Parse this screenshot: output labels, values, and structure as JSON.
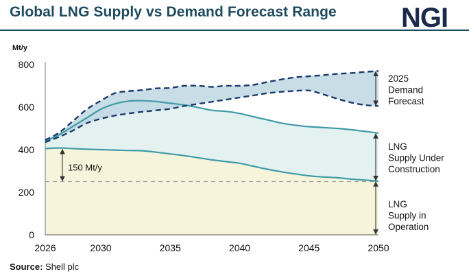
{
  "title": "Global LNG Supply vs Demand Forecast Range",
  "logo": "NGI",
  "source_label": "Source:",
  "source_text": "Shell plc",
  "colors": {
    "title": "#1f4a5c",
    "operation_fill": "#f6f5dc",
    "construction_fill": "#e3f2f1",
    "demand_fill": "#bfd7e3",
    "supply_line": "#3f9aa6",
    "demand_line": "#1b3a6b",
    "dashed_ref": "#9a9a9a"
  },
  "chart_data": {
    "type": "area",
    "title": "Global LNG Supply vs Demand Forecast Range",
    "ylabel": "Mt/y",
    "xlim": [
      2026,
      2050
    ],
    "ylim": [
      0,
      800
    ],
    "xticks": [
      2026,
      2030,
      2035,
      2040,
      2045,
      2050
    ],
    "yticks": [
      0,
      200,
      400,
      600,
      800
    ],
    "x": [
      2026,
      2027,
      2028,
      2029,
      2030,
      2031,
      2032,
      2033,
      2034,
      2035,
      2036,
      2037,
      2038,
      2039,
      2040,
      2041,
      2042,
      2043,
      2044,
      2045,
      2046,
      2047,
      2048,
      2049,
      2050
    ],
    "series": [
      {
        "name": "LNG Supply in Operation",
        "values": [
          405,
          408,
          405,
          402,
          400,
          398,
          396,
          395,
          388,
          380,
          372,
          362,
          352,
          344,
          336,
          322,
          308,
          296,
          286,
          277,
          272,
          268,
          262,
          257,
          252
        ]
      },
      {
        "name": "LNG Supply Under Construction",
        "values": [
          440,
          470,
          510,
          550,
          590,
          615,
          628,
          630,
          626,
          618,
          610,
          598,
          585,
          580,
          570,
          555,
          540,
          525,
          515,
          508,
          504,
          500,
          494,
          486,
          478
        ]
      },
      {
        "name": "2025 Demand Forecast (upper)",
        "values": [
          445,
          480,
          535,
          590,
          630,
          665,
          675,
          680,
          688,
          690,
          700,
          700,
          695,
          700,
          700,
          705,
          718,
          730,
          740,
          745,
          750,
          756,
          760,
          765,
          770
        ]
      },
      {
        "name": "2025 Demand Forecast (lower)",
        "values": [
          435,
          460,
          490,
          525,
          545,
          560,
          570,
          578,
          585,
          592,
          605,
          615,
          625,
          635,
          645,
          655,
          665,
          672,
          676,
          678,
          660,
          640,
          622,
          610,
          605
        ]
      }
    ],
    "reference_line": {
      "value": 250,
      "style": "dashed"
    },
    "annotations": {
      "gap_label": "150 Mt/y",
      "demand_label": [
        "2025",
        "Demand",
        "Forecast"
      ],
      "construction_label": [
        "LNG",
        "Supply Under",
        "Construction"
      ],
      "operation_label": [
        "LNG",
        "Supply in",
        "Operation"
      ]
    }
  }
}
